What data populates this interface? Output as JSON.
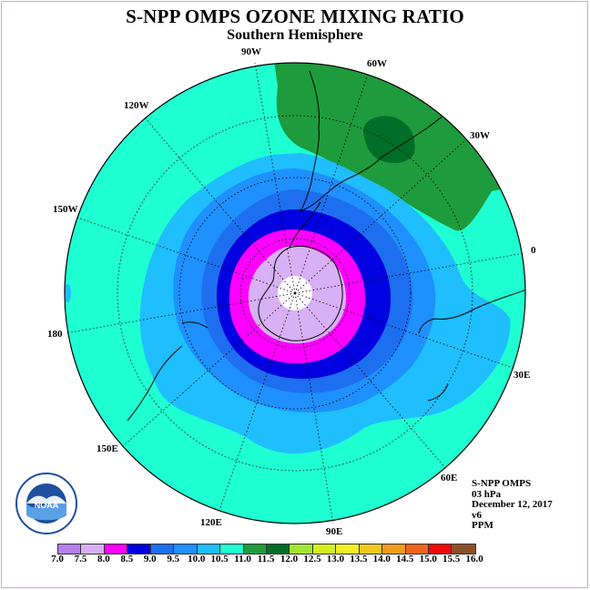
{
  "title": "S-NPP OMPS OZONE MIXING RATIO",
  "subtitle": "Southern Hemisphere",
  "longitude_labels": [
    "90W",
    "60W",
    "30W",
    "0",
    "30E",
    "60E",
    "90E",
    "120E",
    "150E",
    "180",
    "150W",
    "120W"
  ],
  "info": {
    "instrument": "S-NPP OMPS",
    "level": "03 hPa",
    "date": "December 12, 2017",
    "version": "v6",
    "units": "PPM"
  },
  "logo_text": "NOAA",
  "colorbar": {
    "ticks": [
      "7.0",
      "7.5",
      "8.0",
      "8.5",
      "9.0",
      "9.5",
      "10.0",
      "10.5",
      "11.0",
      "11.5",
      "12.0",
      "12.5",
      "13.0",
      "13.5",
      "14.0",
      "14.5",
      "15.0",
      "15.5",
      "16.0"
    ],
    "colors": [
      "#b87ef0",
      "#d8b0f5",
      "#ff00ff",
      "#0000e0",
      "#1e6ef0",
      "#1e90ff",
      "#1ebeff",
      "#1effd2",
      "#1e9b3c",
      "#006e28",
      "#a0e632",
      "#d2f01e",
      "#f0f028",
      "#f0c81e",
      "#f09b1e",
      "#f0641e",
      "#f00a0a",
      "#8c5028"
    ]
  },
  "map": {
    "projection": "south-polar-stereographic",
    "field": "ozone-mixing-ratio",
    "level_colors": {
      "bg": "#1effd2",
      "l105": "#1ebeff",
      "l100": "#1e90ff",
      "l95": "#1e6ef0",
      "l90": "#0000e0",
      "l85": "#ff00ff",
      "l80": "#d8b0f5",
      "hi115": "#1e9b3c",
      "hi12": "#006e28"
    }
  }
}
